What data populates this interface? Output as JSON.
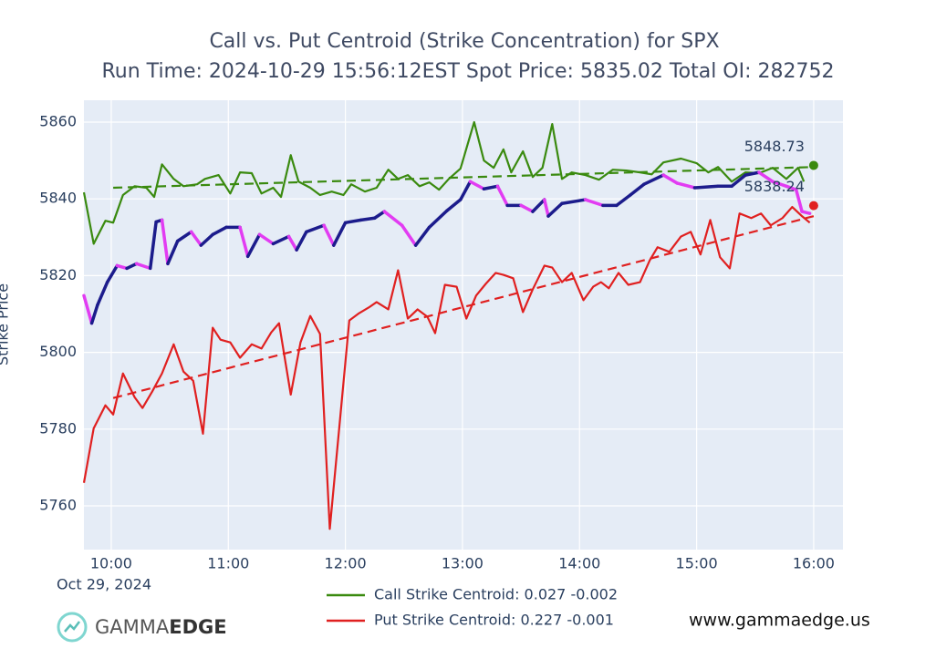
{
  "chart_data": {
    "type": "line",
    "title": "Call vs. Put Centroid (Strike Concentration) for SPX",
    "subtitle": "Run Time: 2024-10-29 15:56:12EST Spot Price: 5835.02 Total OI: 282752",
    "y_label": "Strike Price",
    "x_date_label": "Oct 29, 2024",
    "xlim": [
      "2024-10-29 09:46",
      "2024-10-29 16:15"
    ],
    "xticks": [
      {
        "value": "2024-10-29 10:00",
        "label": "10:00"
      },
      {
        "value": "2024-10-29 11:00",
        "label": "11:00"
      },
      {
        "value": "2024-10-29 12:00",
        "label": "12:00"
      },
      {
        "value": "2024-10-29 13:00",
        "label": "13:00"
      },
      {
        "value": "2024-10-29 14:00",
        "label": "14:00"
      },
      {
        "value": "2024-10-29 15:00",
        "label": "15:00"
      },
      {
        "value": "2024-10-29 16:00",
        "label": "16:00"
      }
    ],
    "ylim": [
      5748.6,
      5865.7
    ],
    "yticks": [
      5760,
      5780,
      5800,
      5820,
      5840,
      5860
    ],
    "grid": true,
    "series": [
      {
        "name": "Call Strike Centroid: 0.027 -0.002",
        "color": "#3a8a0f",
        "x": [
          "2024-10-29 09:46",
          "2024-10-29 09:51",
          "2024-10-29 09:57",
          "2024-10-29 10:01",
          "2024-10-29 10:06",
          "2024-10-29 10:12",
          "2024-10-29 10:18",
          "2024-10-29 10:22",
          "2024-10-29 10:26",
          "2024-10-29 10:32",
          "2024-10-29 10:37",
          "2024-10-29 10:44",
          "2024-10-29 10:48",
          "2024-10-29 10:55",
          "2024-10-29 11:01",
          "2024-10-29 11:06",
          "2024-10-29 11:12",
          "2024-10-29 11:17",
          "2024-10-29 11:23",
          "2024-10-29 11:27",
          "2024-10-29 11:32",
          "2024-10-29 11:36",
          "2024-10-29 11:42",
          "2024-10-29 11:47",
          "2024-10-29 11:53",
          "2024-10-29 11:59",
          "2024-10-29 12:03",
          "2024-10-29 12:10",
          "2024-10-29 12:16",
          "2024-10-29 12:22",
          "2024-10-29 12:27",
          "2024-10-29 12:32",
          "2024-10-29 12:38",
          "2024-10-29 12:43",
          "2024-10-29 12:48",
          "2024-10-29 12:53",
          "2024-10-29 12:59",
          "2024-10-29 13:06",
          "2024-10-29 13:11",
          "2024-10-29 13:16",
          "2024-10-29 13:21",
          "2024-10-29 13:25",
          "2024-10-29 13:31",
          "2024-10-29 13:36",
          "2024-10-29 13:41",
          "2024-10-29 13:46",
          "2024-10-29 13:51",
          "2024-10-29 13:56",
          "2024-10-29 14:03",
          "2024-10-29 14:10",
          "2024-10-29 14:17",
          "2024-10-29 14:24",
          "2024-10-29 14:31",
          "2024-10-29 14:37",
          "2024-10-29 14:43",
          "2024-10-29 14:52",
          "2024-10-29 15:00",
          "2024-10-29 15:06",
          "2024-10-29 15:11",
          "2024-10-29 15:18",
          "2024-10-29 15:25",
          "2024-10-29 15:32",
          "2024-10-29 15:39",
          "2024-10-29 15:46",
          "2024-10-29 15:52",
          "2024-10-29 15:55"
        ],
        "values": [
          5841.7,
          5828.3,
          5834.3,
          5833.8,
          5841.0,
          5843.3,
          5842.9,
          5840.5,
          5849.0,
          5845.2,
          5843.3,
          5843.8,
          5845.2,
          5846.2,
          5841.4,
          5846.9,
          5846.7,
          5841.4,
          5842.9,
          5840.5,
          5851.4,
          5844.5,
          5842.9,
          5841.0,
          5841.9,
          5841.0,
          5843.8,
          5841.9,
          5842.9,
          5847.6,
          5845.2,
          5846.2,
          5843.3,
          5844.3,
          5842.4,
          5845.2,
          5847.9,
          5860.0,
          5850.0,
          5848.1,
          5852.9,
          5846.9,
          5852.4,
          5845.7,
          5848.1,
          5859.5,
          5845.2,
          5846.9,
          5846.2,
          5845.0,
          5847.6,
          5847.4,
          5846.9,
          5846.4,
          5849.5,
          5850.5,
          5849.3,
          5846.9,
          5848.3,
          5844.5,
          5846.9,
          5846.7,
          5848.1,
          5845.2,
          5848.1,
          5844.5
        ]
      },
      {
        "name": "Put Strike Centroid: 0.227 -0.001",
        "color": "#e02020",
        "x": [
          "2024-10-29 09:46",
          "2024-10-29 09:51",
          "2024-10-29 09:57",
          "2024-10-29 10:01",
          "2024-10-29 10:06",
          "2024-10-29 10:12",
          "2024-10-29 10:16",
          "2024-10-29 10:21",
          "2024-10-29 10:26",
          "2024-10-29 10:32",
          "2024-10-29 10:37",
          "2024-10-29 10:42",
          "2024-10-29 10:47",
          "2024-10-29 10:52",
          "2024-10-29 10:56",
          "2024-10-29 11:01",
          "2024-10-29 11:06",
          "2024-10-29 11:12",
          "2024-10-29 11:17",
          "2024-10-29 11:22",
          "2024-10-29 11:26",
          "2024-10-29 11:32",
          "2024-10-29 11:37",
          "2024-10-29 11:42",
          "2024-10-29 11:47",
          "2024-10-29 11:52",
          "2024-10-29 12:02",
          "2024-10-29 12:07",
          "2024-10-29 12:12",
          "2024-10-29 12:16",
          "2024-10-29 12:22",
          "2024-10-29 12:27",
          "2024-10-29 12:32",
          "2024-10-29 12:37",
          "2024-10-29 12:42",
          "2024-10-29 12:46",
          "2024-10-29 12:51",
          "2024-10-29 12:57",
          "2024-10-29 13:02",
          "2024-10-29 13:07",
          "2024-10-29 13:12",
          "2024-10-29 13:17",
          "2024-10-29 13:21",
          "2024-10-29 13:26",
          "2024-10-29 13:31",
          "2024-10-29 13:36",
          "2024-10-29 13:42",
          "2024-10-29 13:46",
          "2024-10-29 13:51",
          "2024-10-29 13:56",
          "2024-10-29 14:02",
          "2024-10-29 14:07",
          "2024-10-29 14:11",
          "2024-10-29 14:15",
          "2024-10-29 14:20",
          "2024-10-29 14:25",
          "2024-10-29 14:31",
          "2024-10-29 14:36",
          "2024-10-29 14:40",
          "2024-10-29 14:46",
          "2024-10-29 14:52",
          "2024-10-29 14:57",
          "2024-10-29 15:02",
          "2024-10-29 15:07",
          "2024-10-29 15:12",
          "2024-10-29 15:17",
          "2024-10-29 15:22",
          "2024-10-29 15:28",
          "2024-10-29 15:33",
          "2024-10-29 15:38",
          "2024-10-29 15:44",
          "2024-10-29 15:49",
          "2024-10-29 15:54",
          "2024-10-29 15:58"
        ],
        "values": [
          5766.0,
          5780.2,
          5786.2,
          5783.8,
          5794.5,
          5788.3,
          5785.5,
          5789.8,
          5794.5,
          5802.1,
          5795.0,
          5792.6,
          5778.8,
          5806.4,
          5803.3,
          5802.6,
          5798.6,
          5802.1,
          5801.0,
          5805.2,
          5807.6,
          5789.0,
          5802.6,
          5809.5,
          5804.8,
          5754.0,
          5808.3,
          5810.2,
          5811.7,
          5813.1,
          5811.2,
          5821.4,
          5808.8,
          5811.2,
          5809.3,
          5805.0,
          5817.6,
          5817.1,
          5808.8,
          5814.8,
          5817.9,
          5820.7,
          5820.2,
          5819.3,
          5810.5,
          5816.4,
          5822.6,
          5822.1,
          5818.3,
          5820.7,
          5813.6,
          5817.1,
          5818.3,
          5816.7,
          5820.7,
          5817.6,
          5818.3,
          5824.0,
          5827.4,
          5826.2,
          5830.2,
          5831.4,
          5825.5,
          5834.5,
          5824.8,
          5821.9,
          5836.2,
          5835.0,
          5836.2,
          5833.1,
          5835.0,
          5837.9,
          5835.5,
          5833.8
        ]
      },
      {
        "color": "#3a8a0f",
        "dash": "dash",
        "x": [
          "2024-10-29 10:01",
          "2024-10-29 16:00"
        ],
        "values": [
          5842.9,
          5848.3
        ]
      },
      {
        "color": "#e02020",
        "dash": "dash",
        "x": [
          "2024-10-29 10:01",
          "2024-10-29 16:00"
        ],
        "values": [
          5788.1,
          5835.5
        ]
      },
      {
        "up_color": "#1c1c8c",
        "down_color": "#e23cf2",
        "x": [
          "2024-10-29 09:46",
          "2024-10-29 09:50",
          "2024-10-29 09:53",
          "2024-10-29 09:58",
          "2024-10-29 10:03",
          "2024-10-29 10:08",
          "2024-10-29 10:13",
          "2024-10-29 10:20",
          "2024-10-29 10:23",
          "2024-10-29 10:26",
          "2024-10-29 10:29",
          "2024-10-29 10:34",
          "2024-10-29 10:41",
          "2024-10-29 10:46",
          "2024-10-29 10:52",
          "2024-10-29 10:59",
          "2024-10-29 11:06",
          "2024-10-29 11:10",
          "2024-10-29 11:16",
          "2024-10-29 11:23",
          "2024-10-29 11:31",
          "2024-10-29 11:35",
          "2024-10-29 11:40",
          "2024-10-29 11:49",
          "2024-10-29 11:54",
          "2024-10-29 12:00",
          "2024-10-29 12:08",
          "2024-10-29 12:15",
          "2024-10-29 12:20",
          "2024-10-29 12:29",
          "2024-10-29 12:36",
          "2024-10-29 12:43",
          "2024-10-29 12:52",
          "2024-10-29 12:59",
          "2024-10-29 13:04",
          "2024-10-29 13:11",
          "2024-10-29 13:18",
          "2024-10-29 13:23",
          "2024-10-29 13:30",
          "2024-10-29 13:36",
          "2024-10-29 13:42",
          "2024-10-29 13:44",
          "2024-10-29 13:51",
          "2024-10-29 14:03",
          "2024-10-29 14:12",
          "2024-10-29 14:19",
          "2024-10-29 14:26",
          "2024-10-29 14:33",
          "2024-10-29 14:43",
          "2024-10-29 14:50",
          "2024-10-29 14:59",
          "2024-10-29 15:11",
          "2024-10-29 15:18",
          "2024-10-29 15:25",
          "2024-10-29 15:32",
          "2024-10-29 15:39",
          "2024-10-29 15:46",
          "2024-10-29 15:51",
          "2024-10-29 15:54",
          "2024-10-29 15:58"
        ],
        "values": [
          5814.8,
          5807.6,
          5812.4,
          5818.3,
          5822.6,
          5821.9,
          5823.1,
          5821.9,
          5834.0,
          5834.5,
          5823.1,
          5829.0,
          5831.4,
          5827.9,
          5830.7,
          5832.6,
          5832.6,
          5825.0,
          5830.7,
          5828.3,
          5830.2,
          5826.7,
          5831.4,
          5833.1,
          5827.9,
          5833.8,
          5834.5,
          5835.0,
          5836.7,
          5833.1,
          5827.9,
          5832.6,
          5836.9,
          5839.8,
          5844.5,
          5842.6,
          5843.3,
          5838.3,
          5838.3,
          5836.7,
          5839.8,
          5835.5,
          5838.8,
          5839.8,
          5838.3,
          5838.3,
          5841.0,
          5843.8,
          5846.2,
          5844.1,
          5842.9,
          5843.3,
          5843.3,
          5846.2,
          5846.9,
          5844.5,
          5843.3,
          5842.4,
          5836.7,
          5836.2
        ]
      }
    ],
    "annotations": [
      {
        "x": "2024-10-29 16:00",
        "y": 5848.73,
        "text": "5848.73",
        "color": "#3a8a0f"
      },
      {
        "x": "2024-10-29 16:00",
        "y": 5838.24,
        "text": "5838.24",
        "color": "#e02020"
      }
    ],
    "brand": {
      "light": "GAMMA",
      "bold": "EDGE"
    },
    "website": "www.gammaedge.us"
  }
}
